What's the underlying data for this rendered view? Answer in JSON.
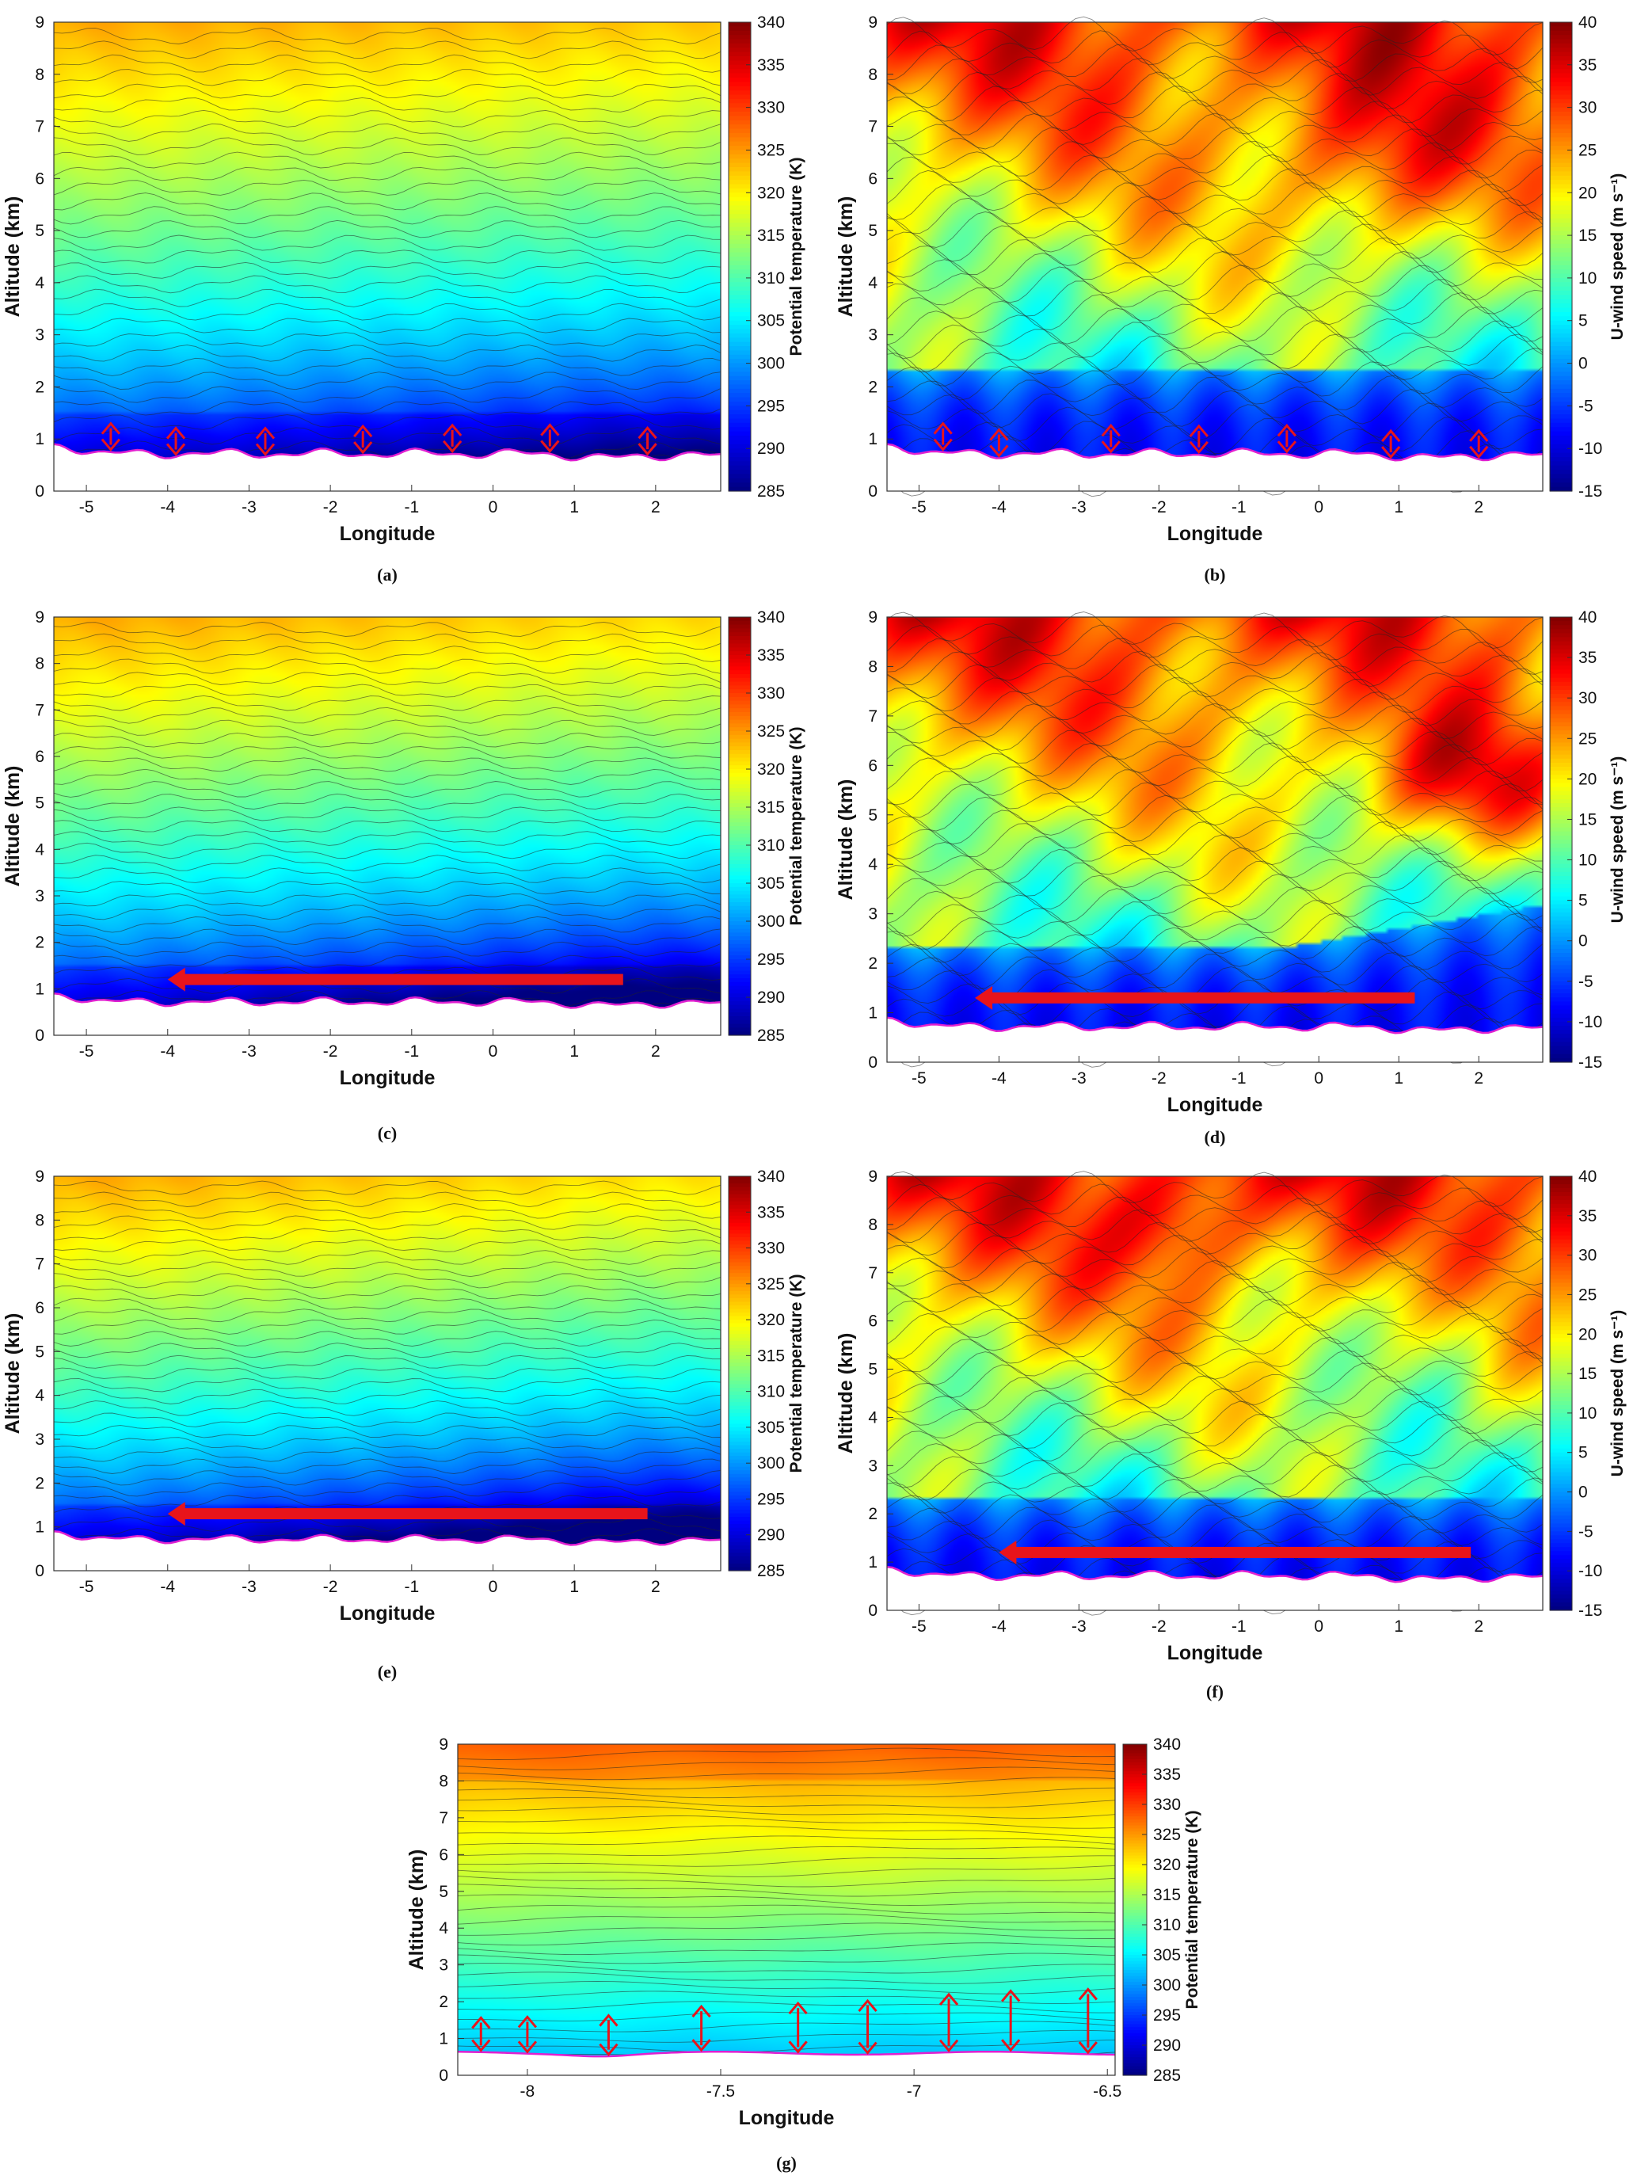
{
  "chart_data": [
    {
      "id": "a",
      "type": "heatmap",
      "caption": "(a)",
      "xlabel": "Longitude",
      "ylabel": "Altitude (km)",
      "xlim": [
        -5.4,
        2.8
      ],
      "ylim": [
        0,
        9
      ],
      "xticks": [
        -5,
        -4,
        -3,
        -2,
        -1,
        0,
        1,
        2
      ],
      "yticks": [
        0,
        1,
        2,
        3,
        4,
        5,
        6,
        7,
        8,
        9
      ],
      "colorbar": {
        "label": "Potential temperature (K)",
        "ticks": [
          285,
          290,
          295,
          300,
          305,
          310,
          315,
          320,
          325,
          330,
          335,
          340
        ],
        "min": 285,
        "max": 340
      },
      "field": "theta",
      "annotation": "vertical double arrows",
      "arrow_x": [
        -4.7,
        -3.9,
        -2.8,
        -1.6,
        -0.5,
        0.7,
        1.9
      ]
    },
    {
      "id": "b",
      "type": "heatmap",
      "caption": "(b)",
      "xlabel": "Longitude",
      "ylabel": "Altitude (km)",
      "xlim": [
        -5.4,
        2.8
      ],
      "ylim": [
        0,
        9
      ],
      "xticks": [
        -5,
        -4,
        -3,
        -2,
        -1,
        0,
        1,
        2
      ],
      "yticks": [
        0,
        1,
        2,
        3,
        4,
        5,
        6,
        7,
        8,
        9
      ],
      "colorbar": {
        "label": "U-wind speed (m s⁻¹)",
        "ticks": [
          -15,
          -10,
          -5,
          0,
          5,
          10,
          15,
          20,
          25,
          30,
          35,
          40
        ],
        "min": -15,
        "max": 40
      },
      "field": "wind",
      "annotation": "vertical double arrows",
      "arrow_x": [
        -4.7,
        -4.0,
        -2.6,
        -1.5,
        -0.4,
        0.9,
        2.0
      ]
    },
    {
      "id": "c",
      "type": "heatmap",
      "caption": "(c)",
      "xlabel": "Longitude",
      "ylabel": "Altitude (km)",
      "xlim": [
        -5.4,
        2.8
      ],
      "ylim": [
        0,
        9
      ],
      "xticks": [
        -5,
        -4,
        -3,
        -2,
        -1,
        0,
        1,
        2
      ],
      "yticks": [
        0,
        1,
        2,
        3,
        4,
        5,
        6,
        7,
        8,
        9
      ],
      "colorbar": {
        "label": "Potential temperature (K)",
        "ticks": [
          285,
          290,
          295,
          300,
          305,
          310,
          315,
          320,
          325,
          330,
          335,
          340
        ],
        "min": 285,
        "max": 340
      },
      "field": "theta",
      "annotation": "horizontal westward arrow",
      "arrow_from": [
        1.6,
        1.2
      ],
      "arrow_to": [
        -4.0,
        1.2
      ]
    },
    {
      "id": "d",
      "type": "heatmap",
      "caption": "(d)",
      "xlabel": "Longitude",
      "ylabel": "Altitude (km)",
      "xlim": [
        -5.4,
        2.8
      ],
      "ylim": [
        0,
        9
      ],
      "xticks": [
        -5,
        -4,
        -3,
        -2,
        -1,
        0,
        1,
        2
      ],
      "yticks": [
        0,
        1,
        2,
        3,
        4,
        5,
        6,
        7,
        8,
        9
      ],
      "colorbar": {
        "label": "U-wind speed (m s⁻¹)",
        "ticks": [
          -15,
          -10,
          -5,
          0,
          5,
          10,
          15,
          20,
          25,
          30,
          35,
          40
        ],
        "min": -15,
        "max": 40
      },
      "field": "wind",
      "annotation": "horizontal westward arrow",
      "arrow_from": [
        1.2,
        1.3
      ],
      "arrow_to": [
        -4.3,
        1.3
      ]
    },
    {
      "id": "e",
      "type": "heatmap",
      "caption": "(e)",
      "xlabel": "Longitude",
      "ylabel": "Altitude (km)",
      "xlim": [
        -5.4,
        2.8
      ],
      "ylim": [
        0,
        9
      ],
      "xticks": [
        -5,
        -4,
        -3,
        -2,
        -1,
        0,
        1,
        2
      ],
      "yticks": [
        0,
        1,
        2,
        3,
        4,
        5,
        6,
        7,
        8,
        9
      ],
      "colorbar": {
        "label": "Potential temperature (K)",
        "ticks": [
          285,
          290,
          295,
          300,
          305,
          310,
          315,
          320,
          325,
          330,
          335,
          340
        ],
        "min": 285,
        "max": 340
      },
      "field": "theta",
      "annotation": "horizontal westward arrow",
      "arrow_from": [
        1.9,
        1.3
      ],
      "arrow_to": [
        -4.0,
        1.3
      ]
    },
    {
      "id": "f",
      "type": "heatmap",
      "caption": "(f)",
      "xlabel": "Longitude",
      "ylabel": "Altitude (km)",
      "xlim": [
        -5.4,
        2.8
      ],
      "ylim": [
        0,
        9
      ],
      "xticks": [
        -5,
        -4,
        -3,
        -2,
        -1,
        0,
        1,
        2
      ],
      "yticks": [
        0,
        1,
        2,
        3,
        4,
        5,
        6,
        7,
        8,
        9
      ],
      "colorbar": {
        "label": "U-wind speed (m s⁻¹)",
        "ticks": [
          -15,
          -10,
          -5,
          0,
          5,
          10,
          15,
          20,
          25,
          30,
          35,
          40
        ],
        "min": -15,
        "max": 40
      },
      "field": "wind",
      "annotation": "horizontal westward arrow",
      "arrow_from": [
        1.9,
        1.2
      ],
      "arrow_to": [
        -4.0,
        1.2
      ]
    },
    {
      "id": "g",
      "type": "heatmap",
      "caption": "(g)",
      "xlabel": "Longitude",
      "ylabel": "Altitude (km)",
      "xlim": [
        -8.18,
        -6.48
      ],
      "ylim": [
        0,
        9
      ],
      "xticks": [
        -8,
        -7.5,
        -7,
        -6.5
      ],
      "yticks": [
        0,
        1,
        2,
        3,
        4,
        5,
        6,
        7,
        8,
        9
      ],
      "colorbar": {
        "label": "Potential temperature (K)",
        "ticks": [
          285,
          290,
          295,
          300,
          305,
          310,
          315,
          320,
          325,
          330,
          335,
          340
        ],
        "min": 285,
        "max": 340
      },
      "field": "theta_g",
      "annotation": "vertical double arrows",
      "arrow_x": [
        -8.12,
        -8.0,
        -7.79,
        -7.55,
        -7.3,
        -7.12,
        -6.91,
        -6.75,
        -6.55
      ]
    }
  ]
}
